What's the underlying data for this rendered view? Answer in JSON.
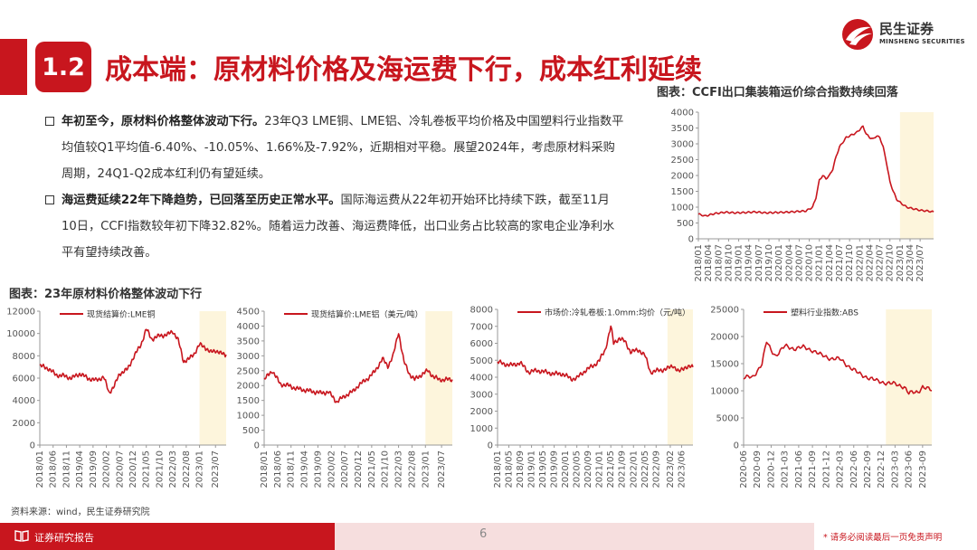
{
  "header": {
    "section_number": "1.2",
    "title": "成本端：原材料价格及海运费下行，成本红利延续",
    "logo_cn": "民生证券",
    "logo_en": "MINSHENG SECURITIES"
  },
  "bullets": [
    {
      "bold": "年初至今，原材料价格整体波动下行。",
      "text": "23年Q3 LME铜、LME铝、冷轧卷板平均价格及中国塑料行业指数平均值较Q1平均值-6.40%、-10.05%、1.66%及-7.92%，近期相对平稳。展望2024年，考虑原材料采购周期，24Q1-Q2成本红利仍有望延续。"
    },
    {
      "bold": "海运费延续22年下降趋势，已回落至历史正常水平。",
      "text": "国际海运费从22年初开始环比持续下跌，截至11月10日，CCFI指数较年初下降32.82%。随着运力改善、海运费降低，出口业务占比较高的家电企业净利水平有望持续改善。"
    }
  ],
  "ccfi_title": "图表：CCFI出口集装箱运价综合指数持续回落",
  "raw_title": "图表：23年原材料价格整体波动下行",
  "source": "资料来源：wind，民生证券研究院",
  "footer": {
    "label": "证券研究报告",
    "page": "6",
    "disclaimer": "* 请务必阅读最后一页免责声明"
  },
  "colors": {
    "accent": "#c8161e",
    "line": "#c8161e",
    "highlight": "#fdf5dc"
  },
  "chart_data": [
    {
      "id": "ccfi",
      "type": "line",
      "title": "",
      "ylim": [
        0,
        4000
      ],
      "yticks": [
        0,
        500,
        1000,
        1500,
        2000,
        2500,
        3000,
        3500,
        4000
      ],
      "xticks": [
        "2018/01",
        "2018/04",
        "2018/07",
        "2018/10",
        "2019/01",
        "2019/04",
        "2019/07",
        "2019/10",
        "2020/01",
        "2020/04",
        "2020/07",
        "2020/10",
        "2021/01",
        "2021/04",
        "2021/07",
        "2021/10",
        "2022/01",
        "2022/04",
        "2022/07",
        "2022/10",
        "2023/01",
        "2023/04",
        "2023/07"
      ],
      "xstart": "2018/01",
      "xend": "2023/11",
      "highlight": [
        "2023/01",
        "2023/11"
      ],
      "points": [
        [
          "2018/01",
          780
        ],
        [
          "2018/03",
          720
        ],
        [
          "2018/06",
          800
        ],
        [
          "2018/09",
          840
        ],
        [
          "2018/12",
          820
        ],
        [
          "2019/03",
          830
        ],
        [
          "2019/06",
          850
        ],
        [
          "2019/09",
          820
        ],
        [
          "2019/12",
          830
        ],
        [
          "2020/03",
          840
        ],
        [
          "2020/06",
          860
        ],
        [
          "2020/09",
          880
        ],
        [
          "2020/11",
          1000
        ],
        [
          "2020/12",
          1300
        ],
        [
          "2021/01",
          1850
        ],
        [
          "2021/02",
          2000
        ],
        [
          "2021/03",
          1900
        ],
        [
          "2021/04",
          2000
        ],
        [
          "2021/05",
          2200
        ],
        [
          "2021/06",
          2600
        ],
        [
          "2021/07",
          2900
        ],
        [
          "2021/08",
          3050
        ],
        [
          "2021/09",
          3200
        ],
        [
          "2021/10",
          3250
        ],
        [
          "2021/12",
          3350
        ],
        [
          "2022/01",
          3450
        ],
        [
          "2022/02",
          3550
        ],
        [
          "2022/03",
          3300
        ],
        [
          "2022/04",
          3200
        ],
        [
          "2022/05",
          3150
        ],
        [
          "2022/06",
          3250
        ],
        [
          "2022/07",
          3200
        ],
        [
          "2022/08",
          2900
        ],
        [
          "2022/09",
          2400
        ],
        [
          "2022/10",
          1800
        ],
        [
          "2022/11",
          1500
        ],
        [
          "2022/12",
          1250
        ],
        [
          "2023/01",
          1150
        ],
        [
          "2023/03",
          1000
        ],
        [
          "2023/05",
          950
        ],
        [
          "2023/07",
          900
        ],
        [
          "2023/09",
          880
        ],
        [
          "2023/11",
          850
        ]
      ]
    },
    {
      "id": "copper",
      "type": "line",
      "legend": "现货结算价:LME铜",
      "ylim": [
        0,
        12000
      ],
      "yticks": [
        0,
        2000,
        4000,
        6000,
        8000,
        10000,
        12000
      ],
      "xticks": [
        "2018/01",
        "2018/06",
        "2018/11",
        "2019/04",
        "2019/09",
        "2020/02",
        "2020/07",
        "2020/12",
        "2021/05",
        "2021/10",
        "2022/03",
        "2022/08",
        "2023/01",
        "2023/07"
      ],
      "xstart": "2018/01",
      "xend": "2023/11",
      "highlight": [
        "2023/01",
        "2023/11"
      ],
      "points": [
        [
          "2018/01",
          7100
        ],
        [
          "2018/04",
          6900
        ],
        [
          "2018/07",
          6300
        ],
        [
          "2018/10",
          6200
        ],
        [
          "2019/01",
          6000
        ],
        [
          "2019/04",
          6400
        ],
        [
          "2019/07",
          6000
        ],
        [
          "2019/10",
          5800
        ],
        [
          "2020/01",
          6100
        ],
        [
          "2020/03",
          4700
        ],
        [
          "2020/05",
          5300
        ],
        [
          "2020/07",
          6400
        ],
        [
          "2020/10",
          6800
        ],
        [
          "2020/12",
          7800
        ],
        [
          "2021/03",
          9000
        ],
        [
          "2021/05",
          10400
        ],
        [
          "2021/07",
          9500
        ],
        [
          "2021/10",
          9800
        ],
        [
          "2022/01",
          9900
        ],
        [
          "2022/03",
          10200
        ],
        [
          "2022/05",
          9400
        ],
        [
          "2022/07",
          7500
        ],
        [
          "2022/09",
          7700
        ],
        [
          "2022/11",
          8200
        ],
        [
          "2023/01",
          9000
        ],
        [
          "2023/03",
          8800
        ],
        [
          "2023/05",
          8300
        ],
        [
          "2023/07",
          8500
        ],
        [
          "2023/09",
          8200
        ],
        [
          "2023/11",
          8100
        ]
      ]
    },
    {
      "id": "aluminum",
      "type": "line",
      "legend": "现货结算价:LME铝（美元/吨）",
      "ylim": [
        0,
        4500
      ],
      "yticks": [
        0,
        500,
        1000,
        1500,
        2000,
        2500,
        3000,
        3500,
        4000,
        4500
      ],
      "xticks": [
        "2018/01",
        "2018/06",
        "2018/11",
        "2019/04",
        "2019/09",
        "2020/02",
        "2020/07",
        "2020/12",
        "2021/05",
        "2021/10",
        "2022/03",
        "2022/08",
        "2023/01",
        "2023/07"
      ],
      "xstart": "2018/01",
      "xend": "2023/11",
      "highlight": [
        "2023/01",
        "2023/11"
      ],
      "points": [
        [
          "2018/01",
          2200
        ],
        [
          "2018/04",
          2500
        ],
        [
          "2018/07",
          2050
        ],
        [
          "2018/10",
          2000
        ],
        [
          "2019/01",
          1900
        ],
        [
          "2019/04",
          1850
        ],
        [
          "2019/07",
          1800
        ],
        [
          "2019/10",
          1750
        ],
        [
          "2020/01",
          1780
        ],
        [
          "2020/04",
          1450
        ],
        [
          "2020/07",
          1650
        ],
        [
          "2020/10",
          1800
        ],
        [
          "2020/12",
          2000
        ],
        [
          "2021/03",
          2200
        ],
        [
          "2021/06",
          2450
        ],
        [
          "2021/09",
          2900
        ],
        [
          "2021/11",
          2650
        ],
        [
          "2022/01",
          3000
        ],
        [
          "2022/03",
          3800
        ],
        [
          "2022/05",
          2800
        ],
        [
          "2022/07",
          2400
        ],
        [
          "2022/09",
          2200
        ],
        [
          "2022/12",
          2400
        ],
        [
          "2023/02",
          2500
        ],
        [
          "2023/04",
          2300
        ],
        [
          "2023/06",
          2200
        ],
        [
          "2023/08",
          2200
        ],
        [
          "2023/11",
          2200
        ]
      ]
    },
    {
      "id": "coldrolled",
      "type": "line",
      "legend": "市场价:冷轧卷板:1.0mm:均价（元/吨）",
      "ylim": [
        0,
        8000
      ],
      "yticks": [
        0,
        1000,
        2000,
        3000,
        4000,
        5000,
        6000,
        7000,
        8000
      ],
      "xticks": [
        "2018/01",
        "2018/05",
        "2018/09",
        "2019/01",
        "2019/05",
        "2019/09",
        "2020/01",
        "2020/05",
        "2020/09",
        "2021/01",
        "2021/05",
        "2021/09",
        "2022/01",
        "2022/05",
        "2022/09",
        "2023/02",
        "2023/06"
      ],
      "xstart": "2018/01",
      "xend": "2023/10",
      "highlight": [
        "2023/01",
        "2023/10"
      ],
      "points": [
        [
          "2018/01",
          4900
        ],
        [
          "2018/03",
          4800
        ],
        [
          "2018/06",
          4700
        ],
        [
          "2018/09",
          4850
        ],
        [
          "2018/12",
          4300
        ],
        [
          "2019/03",
          4400
        ],
        [
          "2019/06",
          4300
        ],
        [
          "2019/09",
          4200
        ],
        [
          "2019/12",
          4200
        ],
        [
          "2020/03",
          3900
        ],
        [
          "2020/05",
          3950
        ],
        [
          "2020/08",
          4400
        ],
        [
          "2020/11",
          4700
        ],
        [
          "2021/01",
          5000
        ],
        [
          "2021/03",
          5600
        ],
        [
          "2021/05",
          7000
        ],
        [
          "2021/06",
          6000
        ],
        [
          "2021/08",
          6300
        ],
        [
          "2021/10",
          6100
        ],
        [
          "2021/12",
          5500
        ],
        [
          "2022/03",
          5600
        ],
        [
          "2022/05",
          5300
        ],
        [
          "2022/07",
          4300
        ],
        [
          "2022/10",
          4400
        ],
        [
          "2023/01",
          4500
        ],
        [
          "2023/03",
          4700
        ],
        [
          "2023/05",
          4300
        ],
        [
          "2023/07",
          4600
        ],
        [
          "2023/10",
          4600
        ]
      ]
    },
    {
      "id": "plastic",
      "type": "line",
      "legend": "塑料行业指数:ABS",
      "ylim": [
        0,
        25000
      ],
      "yticks": [
        0,
        5000,
        10000,
        15000,
        20000,
        25000
      ],
      "xticks": [
        "2020-06",
        "2020-09",
        "2020-12",
        "2021-03",
        "2021-06",
        "2021-09",
        "2021-12",
        "2022-03",
        "2022-06",
        "2022-09",
        "2022-12",
        "2023-03",
        "2023-06",
        "2023-09"
      ],
      "xstart": "2020-06",
      "xend": "2023-11",
      "highlight": [
        "2023-01",
        "2023-11"
      ],
      "points": [
        [
          "2020-06",
          12400
        ],
        [
          "2020-08",
          12500
        ],
        [
          "2020-10",
          15000
        ],
        [
          "2020-11",
          19000
        ],
        [
          "2020-12",
          17500
        ],
        [
          "2021-01",
          16500
        ],
        [
          "2021-03",
          18200
        ],
        [
          "2021-05",
          17800
        ],
        [
          "2021-07",
          18000
        ],
        [
          "2021-09",
          17500
        ],
        [
          "2021-11",
          16500
        ],
        [
          "2022-01",
          16000
        ],
        [
          "2022-03",
          15800
        ],
        [
          "2022-05",
          14500
        ],
        [
          "2022-07",
          13200
        ],
        [
          "2022-09",
          12500
        ],
        [
          "2022-11",
          11800
        ],
        [
          "2023-01",
          11500
        ],
        [
          "2023-03",
          11200
        ],
        [
          "2023-05",
          10800
        ],
        [
          "2023-06",
          9500
        ],
        [
          "2023-08",
          9800
        ],
        [
          "2023-09",
          10800
        ],
        [
          "2023-11",
          10000
        ]
      ]
    }
  ]
}
